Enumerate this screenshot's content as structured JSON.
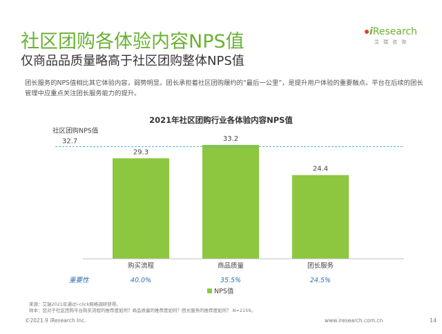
{
  "header": {
    "title": "社区团购各体验内容NPS值",
    "subtitle": "仅商品品质量略高于社区团购整体NPS值"
  },
  "logo": {
    "brand_i": "i",
    "brand_rest": "Research",
    "sub": "艾瑞咨询"
  },
  "description": "团长服务的NPS值相比其它体验内容，弱势明显。团长承担着社区团购履约的“最后一公里”，是提升用户体验的重要触点。平台在后续的团长管理中应重点关注团长服务能力的提升。",
  "chart_data": {
    "type": "bar",
    "title": "2021年社区团购行业各体验内容NPS值",
    "categories": [
      "购买流程",
      "商品质量",
      "团长服务"
    ],
    "series": [
      {
        "name": "NPS值",
        "values": [
          29.3,
          33.2,
          24.4
        ]
      }
    ],
    "value_labels": [
      "29.3",
      "33.2",
      "24.4"
    ],
    "reference_line": {
      "label": "社区团购NPS值",
      "value": 32.7,
      "value_label": "32.7"
    },
    "importance": {
      "label": "重要性",
      "values": [
        "40.0%",
        "35.5%",
        "24.5%"
      ]
    },
    "legend_label": "NPS值",
    "legend_position": "bottom",
    "ylim": [
      0,
      35
    ],
    "colors": {
      "bar": "#8dc63f",
      "reference": "#4fb8d8",
      "importance": "#2f6fb7"
    }
  },
  "note": {
    "source": "来源：艾瑞2021年通过i-click网络调研获得。",
    "sample": "样本：您对于社区团购平台购买流程的推荐度如何？商品质量的推荐度如何？团长服务的推荐度如何？ N=2159。"
  },
  "footer": {
    "copyright": "©2021.9 iResearch Inc.",
    "url": "www.iresearch.com.cn",
    "page": "14"
  }
}
